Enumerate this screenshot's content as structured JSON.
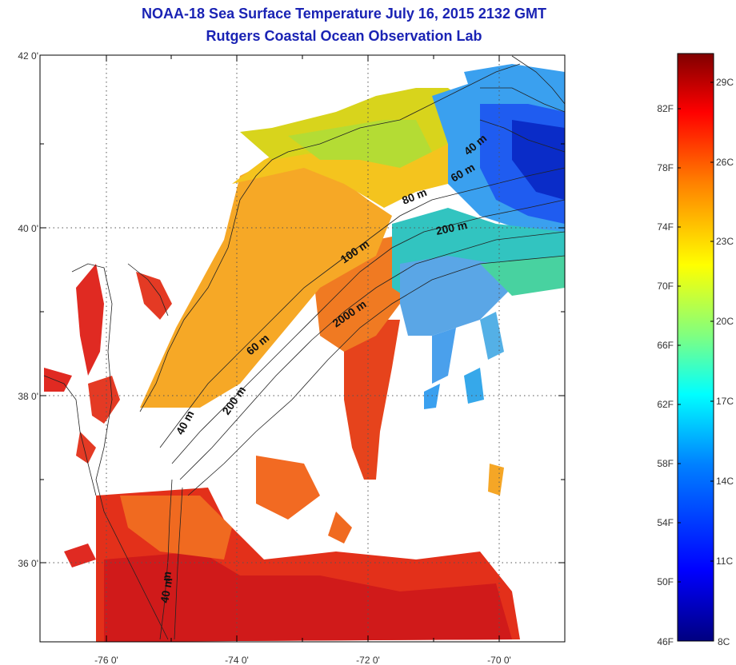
{
  "title_line1": "NOAA-18 Sea Surface Temperature July 16, 2015 2132 GMT",
  "title_line2": "Rutgers Coastal Ocean Observation Lab",
  "lat_labels": [
    "42 0'",
    "40 0'",
    "38 0'",
    "36 0'"
  ],
  "lon_labels": [
    "-76 0'",
    "-74 0'",
    "-72 0'",
    "-70 0'"
  ],
  "contour_labels": [
    "40 m",
    "60 m",
    "80 m",
    "200 m",
    "100 m",
    "2000 m",
    "60 m",
    "200 m",
    "40 m",
    "40 m"
  ],
  "colorbar": {
    "fahrenheit": [
      "82F",
      "78F",
      "74F",
      "70F",
      "66F",
      "62F",
      "58F",
      "54F",
      "50F",
      "46F"
    ],
    "celsius": [
      "29C",
      "26C",
      "23C",
      "20C",
      "17C",
      "14C",
      "11C",
      "8C"
    ],
    "colors": [
      "#000080",
      "#0000ff",
      "#0080ff",
      "#00ffff",
      "#80ff80",
      "#ffff00",
      "#ff8000",
      "#ff0000",
      "#800000"
    ]
  },
  "palette": {
    "land_outline": "#000000",
    "cloud_gap": "#ffffff",
    "title_color": "#1a23b4"
  }
}
